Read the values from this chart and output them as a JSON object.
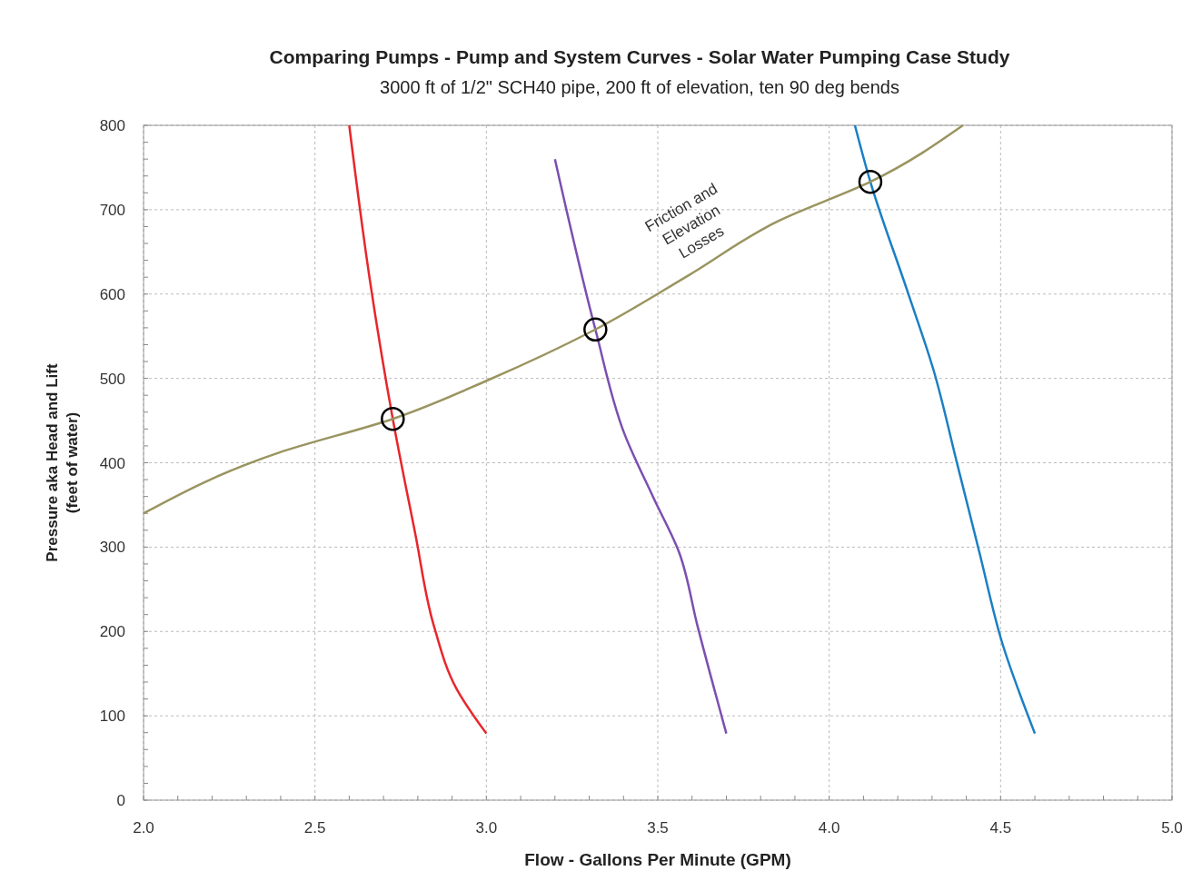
{
  "chart_data": {
    "type": "line",
    "title": "Comparing  Pumps - Pump and System Curves - Solar Water Pumping Case Study",
    "subtitle": "3000 ft of 1/2\" SCH40 pipe, 200 ft of elevation, ten 90 deg bends",
    "xlabel": "Flow - Gallons Per Minute (GPM)",
    "ylabel": "Pressure aka Head and Lift\n(feet of water)",
    "xlim": [
      2.0,
      5.0
    ],
    "xticks": [
      {
        "value": 2,
        "label": "2.0"
      },
      {
        "value": 2.5,
        "label": "2.5"
      },
      {
        "value": 3,
        "label": "3.0"
      },
      {
        "value": 3.5,
        "label": "3.5"
      },
      {
        "value": 4,
        "label": "4.0"
      },
      {
        "value": 4.5,
        "label": "4.5"
      },
      {
        "value": 5,
        "label": "5.0"
      }
    ],
    "ylim": [
      0,
      800
    ],
    "yticks": [
      0,
      100,
      200,
      300,
      400,
      500,
      600,
      700,
      800
    ],
    "grid": true,
    "line_style": "solid",
    "marker": "none",
    "series": [
      {
        "color": "#e8262b",
        "x": [
          2.6,
          2.66,
          2.727,
          2.793,
          2.846,
          2.913,
          3.0
        ],
        "values": [
          800,
          617,
          452,
          315,
          208,
          132,
          79
        ]
      },
      {
        "color": "#7b4fb0",
        "x": [
          3.2,
          3.318,
          3.403,
          3.488,
          3.562,
          3.615,
          3.7
        ],
        "values": [
          760,
          558,
          434,
          358,
          294,
          208,
          79
        ]
      },
      {
        "color": "#1a7fc4",
        "x": [
          4.075,
          4.12,
          4.226,
          4.305,
          4.372,
          4.438,
          4.505,
          4.6
        ],
        "values": [
          800,
          733,
          606,
          509,
          401,
          294,
          186,
          79
        ]
      },
      {
        "name": "Friction and\nElevation\nLosses",
        "color": "#9a9460",
        "x": [
          2.0,
          2.395,
          2.727,
          3.005,
          3.318,
          3.589,
          3.854,
          4.12,
          4.39
        ],
        "values": [
          340,
          412,
          452,
          498,
          558,
          622,
          687,
          733,
          800
        ]
      },
      {
        "type": "scatter",
        "marker": "circle",
        "color": "#000000",
        "x": [
          2.727,
          3.318,
          4.12
        ],
        "values": [
          452,
          558,
          733
        ]
      }
    ]
  }
}
